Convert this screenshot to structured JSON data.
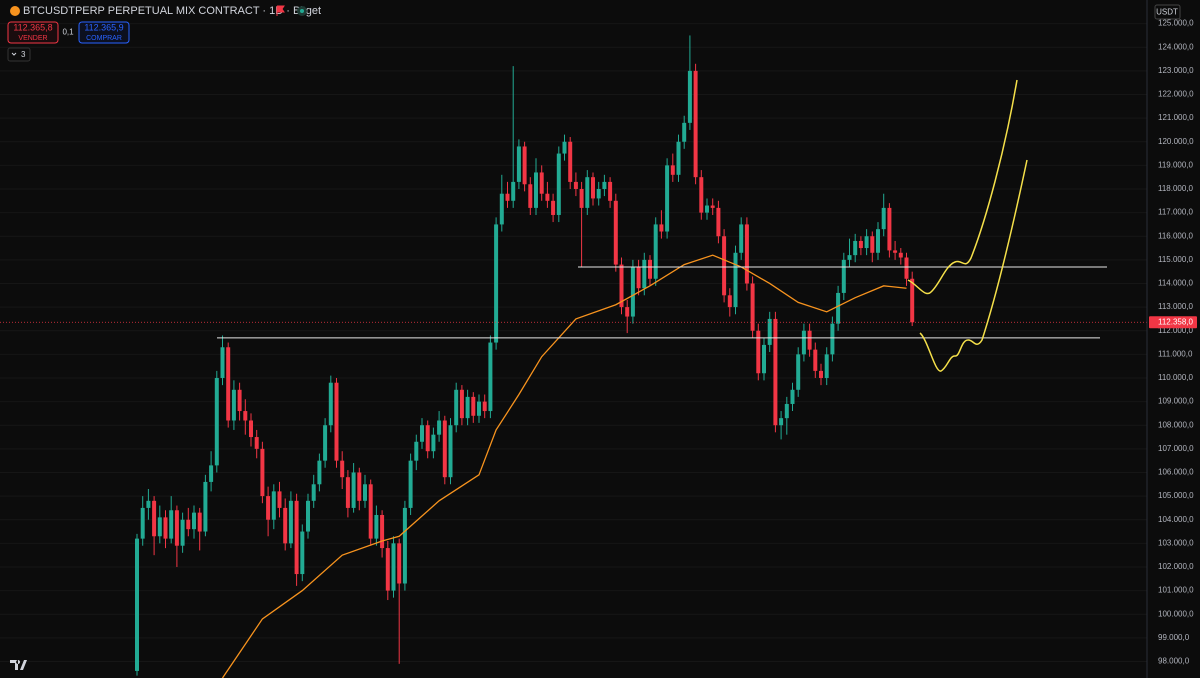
{
  "header": {
    "sell_price": "112.365,8",
    "sell_label": "VENDER",
    "spread": "0,1",
    "buy_price": "112.365,9",
    "buy_label": "COMPRAR",
    "indicators_count": "3",
    "currency": "USDT"
  },
  "chart_data": {
    "type": "candlestick",
    "title": "BTCUSDTPERP PERPETUAL MIX CONTRACT · 1D · Bitget",
    "up_color": "#22ab94",
    "down_color": "#f23645",
    "grid": true,
    "ylim": [
      97300,
      126000
    ],
    "yticks": [
      {
        "value": 98000,
        "label": "98.000,0"
      },
      {
        "value": 99000,
        "label": "99.000,0"
      },
      {
        "value": 100000,
        "label": "100.000,0"
      },
      {
        "value": 101000,
        "label": "101.000,0"
      },
      {
        "value": 102000,
        "label": "102.000,0"
      },
      {
        "value": 103000,
        "label": "103.000,0"
      },
      {
        "value": 104000,
        "label": "104.000,0"
      },
      {
        "value": 105000,
        "label": "105.000,0"
      },
      {
        "value": 106000,
        "label": "106.000,0"
      },
      {
        "value": 107000,
        "label": "107.000,0"
      },
      {
        "value": 108000,
        "label": "108.000,0"
      },
      {
        "value": 109000,
        "label": "109.000,0"
      },
      {
        "value": 110000,
        "label": "110.000,0"
      },
      {
        "value": 111000,
        "label": "111.000,0"
      },
      {
        "value": 112000,
        "label": "112.000,0"
      },
      {
        "value": 113000,
        "label": "113.000,0"
      },
      {
        "value": 114000,
        "label": "114.000,0"
      },
      {
        "value": 115000,
        "label": "115.000,0"
      },
      {
        "value": 116000,
        "label": "116.000,0"
      },
      {
        "value": 117000,
        "label": "117.000,0"
      },
      {
        "value": 118000,
        "label": "118.000,0"
      },
      {
        "value": 119000,
        "label": "119.000,0"
      },
      {
        "value": 120000,
        "label": "120.000,0"
      },
      {
        "value": 121000,
        "label": "121.000,0"
      },
      {
        "value": 122000,
        "label": "122.000,0"
      },
      {
        "value": 123000,
        "label": "123.000,0"
      },
      {
        "value": 124000,
        "label": "124.000,0"
      },
      {
        "value": 125000,
        "label": "125.000,0"
      }
    ],
    "open": [
      97600,
      103200,
      104500,
      104800,
      103300,
      104100,
      103200,
      104400,
      102900,
      104000,
      103600,
      104300,
      103500,
      105600,
      106300,
      110000,
      111300,
      108200,
      109500,
      108600,
      108200,
      107500,
      107000,
      105000,
      104000,
      105200,
      104500,
      103000,
      104800,
      101700,
      103500,
      104800,
      105500,
      106500,
      108000,
      109800,
      106500,
      105800,
      104500,
      106000,
      104800,
      105500,
      103200,
      104200,
      102800,
      101000,
      103000,
      101300,
      104500,
      106500,
      107300,
      108000,
      106900,
      107600,
      108200,
      105800,
      108000,
      109500,
      108300,
      109200,
      108400,
      109000,
      108600,
      111500,
      116500,
      117800,
      117500,
      118300,
      119800,
      118200,
      117200,
      118700,
      117800,
      117500,
      116900,
      119500,
      120000,
      118300,
      118000,
      117200,
      118500,
      117600,
      118000,
      118300,
      117500,
      114800,
      113000,
      112600,
      114700,
      113800,
      115000,
      114200,
      116500,
      116200,
      119000,
      118600,
      120000,
      120800,
      123000,
      118500,
      117000,
      117300,
      117200,
      116000,
      113500,
      113000,
      115300,
      116500,
      114000,
      112000,
      110200,
      111400,
      112500,
      108000,
      108300,
      108900,
      109500,
      111000,
      112000,
      111200,
      110300,
      110000,
      111000,
      112300,
      113600,
      115000,
      115200,
      115800,
      115500,
      116000,
      115300,
      116300,
      117200,
      115400,
      115300,
      115100,
      114200
    ],
    "high": [
      103400,
      105000,
      105300,
      105000,
      104600,
      104400,
      105000,
      104600,
      104300,
      104500,
      104600,
      104500,
      105900,
      106900,
      110300,
      111800,
      111500,
      109900,
      109800,
      109100,
      108500,
      107800,
      107300,
      105400,
      105500,
      105600,
      104900,
      105200,
      105100,
      103800,
      105100,
      105900,
      106800,
      108300,
      110100,
      110000,
      106900,
      106100,
      106400,
      106200,
      105900,
      105700,
      104600,
      104400,
      103100,
      103300,
      103200,
      104800,
      106800,
      107600,
      108300,
      108200,
      107900,
      108600,
      108400,
      108300,
      109800,
      109700,
      109500,
      109400,
      109300,
      109300,
      111800,
      116800,
      118600,
      118300,
      123200,
      120100,
      120000,
      118500,
      119300,
      119000,
      118300,
      117800,
      119800,
      120300,
      120200,
      118700,
      118300,
      118800,
      118700,
      118300,
      118600,
      118500,
      117800,
      115100,
      113300,
      115000,
      115000,
      115300,
      115200,
      116800,
      117100,
      119300,
      119500,
      120300,
      121100,
      124500,
      123300,
      118800,
      117600,
      117600,
      117500,
      116300,
      113800,
      115600,
      116800,
      116800,
      114300,
      112300,
      111700,
      112800,
      112800,
      108600,
      109200,
      109800,
      111300,
      112300,
      112300,
      111500,
      110600,
      111300,
      112600,
      113900,
      115300,
      115900,
      116100,
      116000,
      116300,
      116200,
      116600,
      117800,
      117400,
      115800,
      115500,
      115300,
      114500
    ],
    "low": [
      97400,
      102900,
      104000,
      102500,
      103000,
      102800,
      103000,
      102000,
      102600,
      103300,
      103200,
      102700,
      103300,
      105200,
      106000,
      109700,
      107900,
      107800,
      108200,
      107600,
      107100,
      106600,
      104700,
      103300,
      103600,
      104100,
      102700,
      102800,
      101200,
      101400,
      103200,
      104500,
      105200,
      106200,
      107700,
      106200,
      105300,
      104100,
      104300,
      104400,
      104500,
      102900,
      102900,
      102400,
      100600,
      100700,
      97900,
      101000,
      104200,
      106100,
      107000,
      106600,
      106600,
      107300,
      105500,
      105500,
      107700,
      108000,
      108000,
      108100,
      108100,
      108300,
      108300,
      111200,
      116200,
      117200,
      117200,
      118000,
      117900,
      116900,
      116900,
      117500,
      117200,
      116600,
      116600,
      119200,
      118000,
      117700,
      114700,
      116900,
      117300,
      117300,
      117700,
      117200,
      114500,
      112700,
      111900,
      112300,
      113500,
      113500,
      113900,
      113900,
      115900,
      115900,
      118300,
      118300,
      119700,
      120500,
      118200,
      116700,
      116700,
      116900,
      115700,
      113200,
      112600,
      112700,
      115000,
      113700,
      111700,
      109900,
      109900,
      111100,
      107700,
      107400,
      107600,
      108600,
      109200,
      110700,
      110900,
      110000,
      109700,
      109700,
      110700,
      112000,
      113300,
      114700,
      114900,
      115200,
      115200,
      114900,
      115000,
      116000,
      115100,
      115000,
      114800,
      113900,
      112200
    ],
    "close": [
      103200,
      104500,
      104800,
      103300,
      104100,
      103200,
      104400,
      102900,
      104000,
      103600,
      104300,
      103500,
      105600,
      106300,
      110000,
      111300,
      108200,
      109500,
      108600,
      108200,
      107500,
      107000,
      105000,
      104000,
      105200,
      104500,
      103000,
      104800,
      101700,
      103500,
      104800,
      105500,
      106500,
      108000,
      109800,
      106500,
      105800,
      104500,
      106000,
      104800,
      105500,
      103200,
      104200,
      102800,
      101000,
      103000,
      101300,
      104500,
      106500,
      107300,
      108000,
      106900,
      107600,
      108200,
      105800,
      108000,
      109500,
      108300,
      109200,
      108400,
      109000,
      108600,
      111500,
      116500,
      117800,
      117500,
      118300,
      119800,
      118200,
      117200,
      118700,
      117800,
      117500,
      116900,
      119500,
      120000,
      118300,
      118000,
      117200,
      118500,
      117600,
      118000,
      118300,
      117500,
      114800,
      113000,
      112600,
      114700,
      113800,
      115000,
      114200,
      116500,
      116200,
      119000,
      118600,
      120000,
      120800,
      123000,
      118500,
      117000,
      117300,
      117200,
      116000,
      113500,
      113000,
      115300,
      116500,
      114000,
      112000,
      110200,
      111400,
      112500,
      108000,
      108300,
      108900,
      109500,
      111000,
      112000,
      111200,
      110300,
      110000,
      111000,
      112300,
      113600,
      115000,
      115200,
      115800,
      115500,
      116000,
      115300,
      116300,
      117200,
      115400,
      115300,
      115100,
      114200,
      112358
    ],
    "moving_average": {
      "color": "#f7931e",
      "x": [
        15,
        22,
        29,
        36,
        43,
        46,
        53,
        60,
        63,
        67,
        71,
        77,
        84,
        90,
        96,
        101,
        106,
        111,
        116,
        121,
        126,
        131,
        135
      ],
      "values": [
        97300,
        99800,
        101000,
        102500,
        103100,
        103300,
        104800,
        105900,
        107800,
        109300,
        110900,
        112500,
        113100,
        113900,
        114800,
        115200,
        114700,
        114000,
        113200,
        112800,
        113400,
        113900,
        113800
      ]
    },
    "levels": {
      "color": "#e6e6e6",
      "values": [
        114700,
        111700
      ]
    },
    "last_price": {
      "value": 112358,
      "label": "112.358,0"
    }
  }
}
